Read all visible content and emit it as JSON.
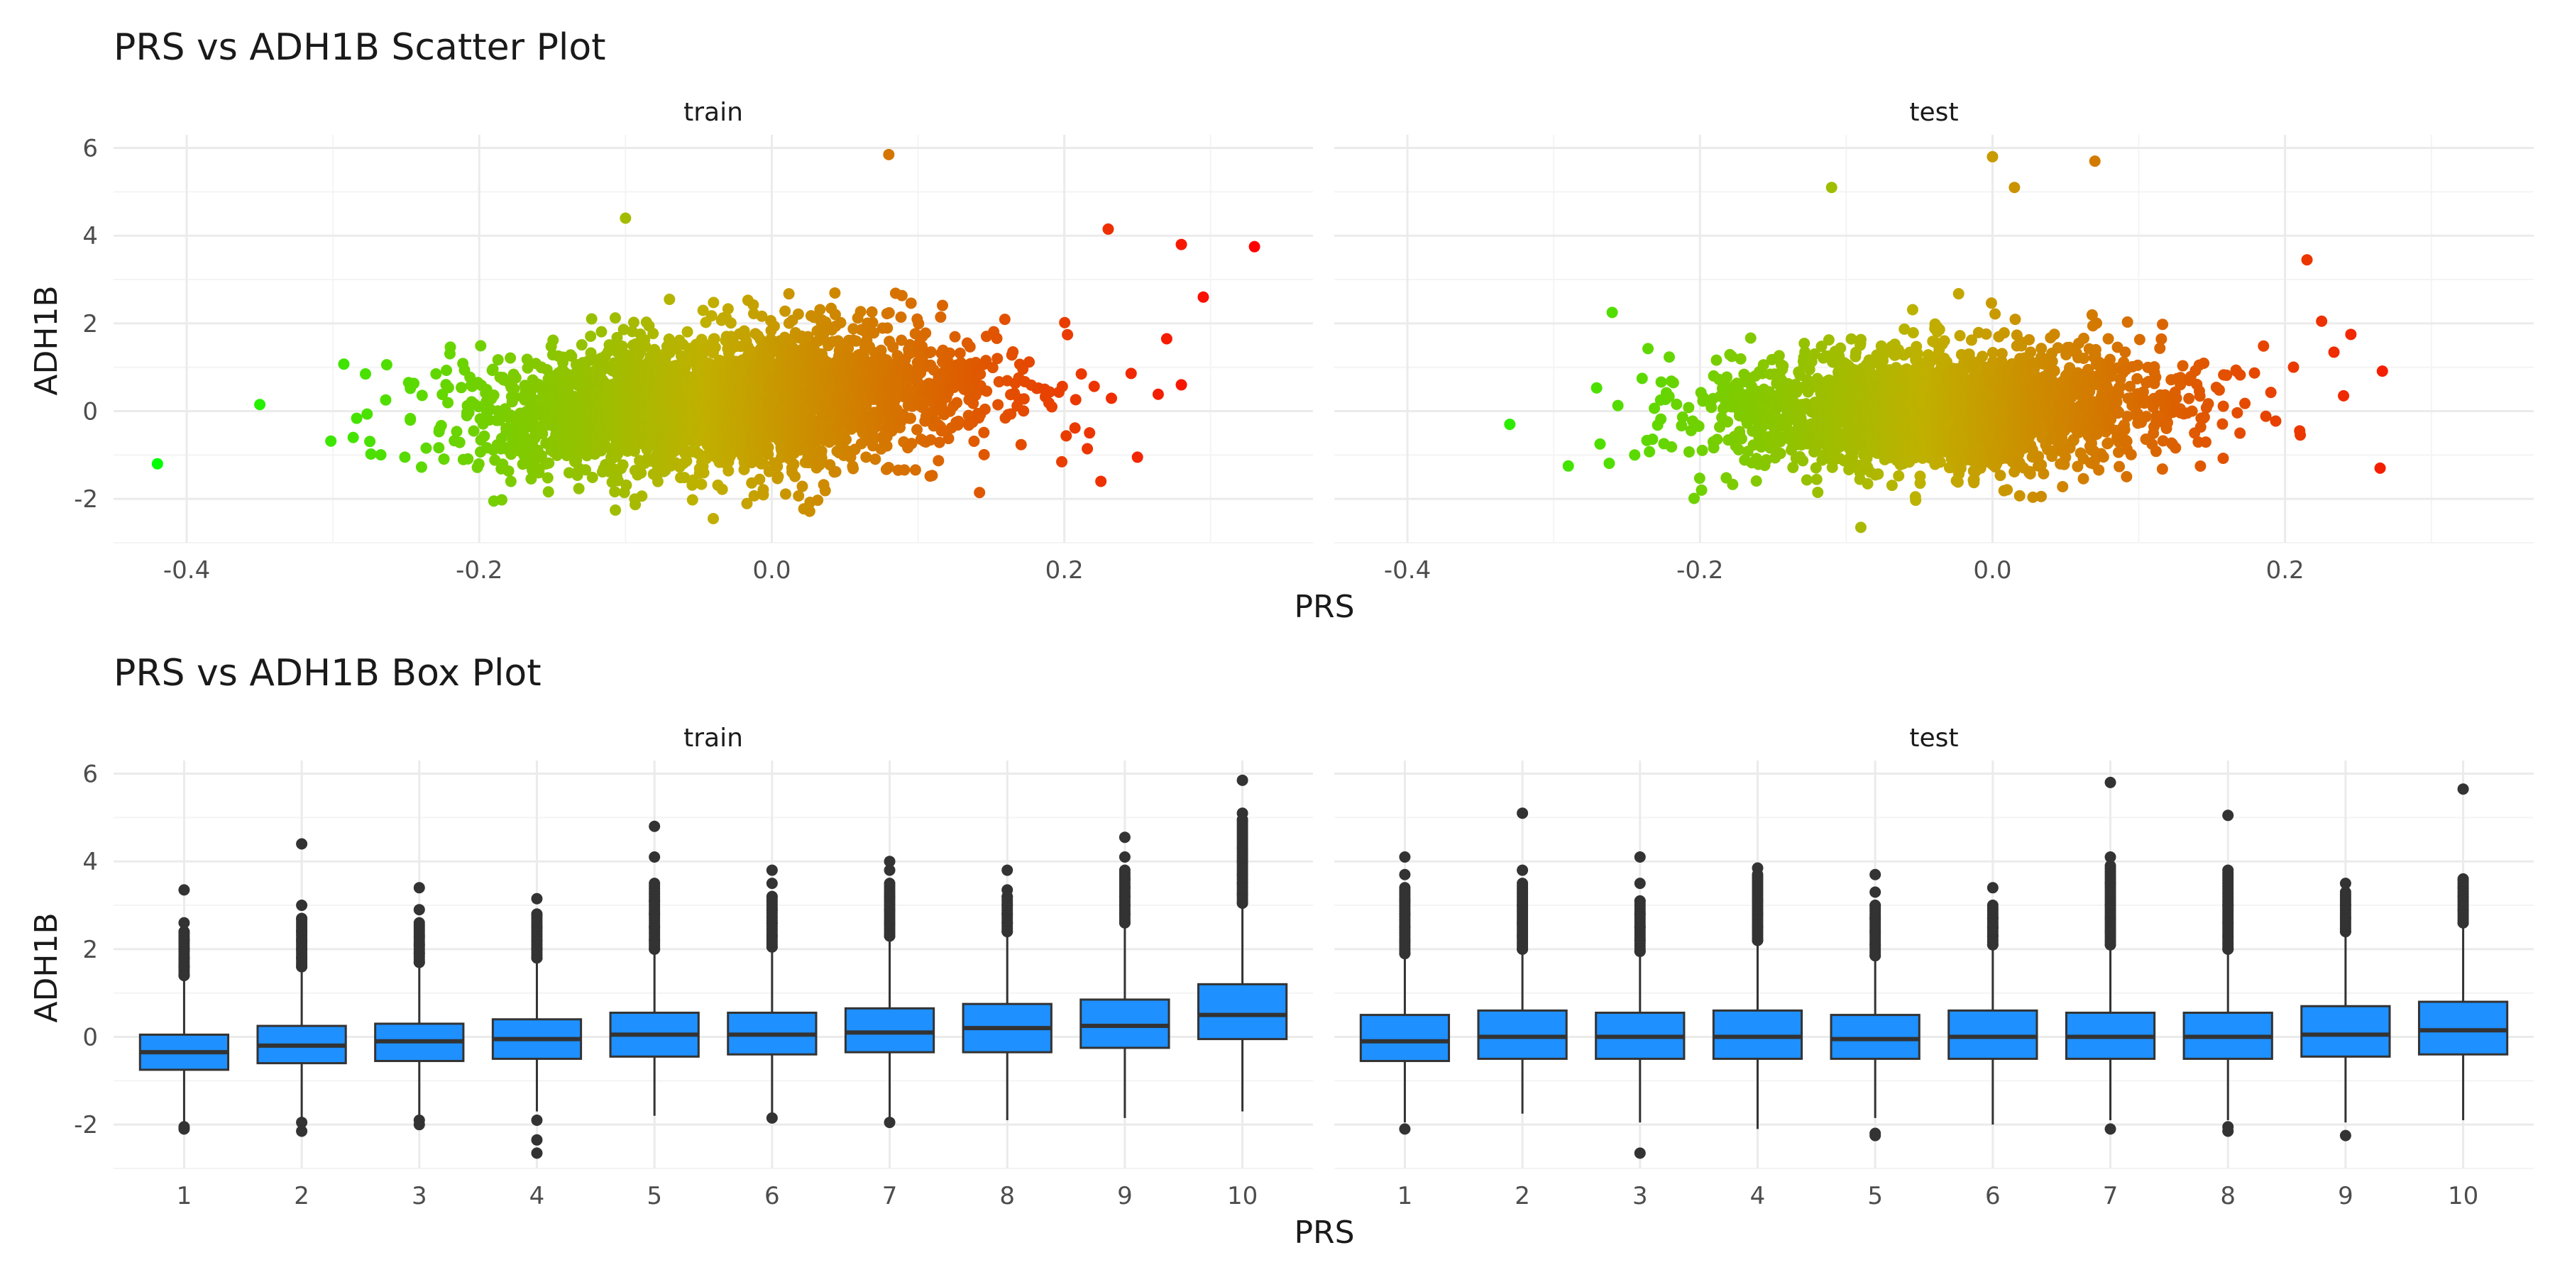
{
  "colors": {
    "background": "#ffffff",
    "grid": "#ebebeb",
    "box_fill": "#1e90ff",
    "box_outline": "#333333",
    "outlier": "#333333",
    "gradient_low": "#00ff00",
    "gradient_mid": "#c0b000",
    "gradient_high": "#ff0000"
  },
  "chart_data": [
    {
      "type": "scatter",
      "title": "PRS vs ADH1B Scatter Plot",
      "xlabel": "PRS",
      "ylabel": "ADH1B",
      "facets": [
        "train",
        "test"
      ],
      "xlim": [
        -0.45,
        0.37
      ],
      "ylim": [
        -3.0,
        6.3
      ],
      "x_ticks": [
        -0.4,
        -0.2,
        0.0,
        0.2
      ],
      "x_tick_labels": [
        "-0.4",
        "-0.2",
        "0.0",
        "0.2"
      ],
      "y_ticks": [
        -2,
        0,
        2,
        4,
        6
      ],
      "y_tick_labels": [
        "-2",
        "0",
        "2",
        "4",
        "6"
      ],
      "color_encoding": "PRS (gradient green to red)",
      "point_cloud": {
        "train": {
          "n": 3000,
          "x_mean": -0.03,
          "x_sd": 0.085,
          "slope": 3.2,
          "resid_sd": 0.78
        },
        "test": {
          "n": 2200,
          "x_mean": -0.035,
          "x_sd": 0.08,
          "slope": 0.6,
          "resid_sd": 0.72
        }
      },
      "series": [
        {
          "facet": "train",
          "extreme_points": [
            [
              -0.42,
              -1.2
            ],
            [
              -0.35,
              0.15
            ],
            [
              0.33,
              3.75
            ],
            [
              0.28,
              3.8
            ],
            [
              0.295,
              2.6
            ],
            [
              0.23,
              4.15
            ],
            [
              0.08,
              5.85
            ],
            [
              -0.1,
              4.4
            ],
            [
              0.28,
              0.6
            ],
            [
              0.25,
              -1.05
            ],
            [
              0.225,
              -1.6
            ],
            [
              -0.04,
              -2.45
            ],
            [
              -0.19,
              -2.05
            ],
            [
              0.27,
              1.65
            ]
          ]
        },
        {
          "facet": "test",
          "extreme_points": [
            [
              -0.33,
              -0.3
            ],
            [
              -0.29,
              -1.25
            ],
            [
              -0.26,
              2.25
            ],
            [
              0.0,
              5.8
            ],
            [
              0.07,
              5.7
            ],
            [
              -0.11,
              5.1
            ],
            [
              0.015,
              5.1
            ],
            [
              0.265,
              -1.3
            ],
            [
              0.24,
              0.35
            ],
            [
              0.215,
              3.45
            ],
            [
              0.245,
              1.75
            ],
            [
              -0.09,
              -2.65
            ],
            [
              0.225,
              2.05
            ],
            [
              0.21,
              -0.45
            ]
          ]
        }
      ]
    },
    {
      "type": "box",
      "title": "PRS vs ADH1B Box Plot",
      "xlabel": "PRS",
      "ylabel": "ADH1B",
      "facets": [
        "train",
        "test"
      ],
      "categories": [
        "1",
        "2",
        "3",
        "4",
        "5",
        "6",
        "7",
        "8",
        "9",
        "10"
      ],
      "ylim": [
        -3.0,
        6.3
      ],
      "y_ticks": [
        -2,
        0,
        2,
        4,
        6
      ],
      "y_tick_labels": [
        "-2",
        "0",
        "2",
        "4",
        "6"
      ],
      "series": [
        {
          "facet": "train",
          "boxes": [
            {
              "q1": -0.75,
              "median": -0.35,
              "q3": 0.05,
              "low": -1.95,
              "high": 1.3,
              "outliers": [
                -2.05,
                -2.1,
                1.4,
                1.6,
                1.8,
                2.0,
                2.2,
                2.4,
                2.6,
                3.35
              ]
            },
            {
              "q1": -0.6,
              "median": -0.2,
              "q3": 0.25,
              "low": -1.85,
              "high": 1.5,
              "outliers": [
                -1.95,
                -2.15,
                1.6,
                1.8,
                2.0,
                2.2,
                2.4,
                2.7,
                3.0,
                4.4
              ]
            },
            {
              "q1": -0.55,
              "median": -0.1,
              "q3": 0.3,
              "low": -1.8,
              "high": 1.6,
              "outliers": [
                -1.9,
                -2.0,
                1.7,
                1.9,
                2.1,
                2.3,
                2.6,
                2.9,
                3.4
              ]
            },
            {
              "q1": -0.5,
              "median": -0.05,
              "q3": 0.4,
              "low": -1.7,
              "high": 1.7,
              "outliers": [
                -1.9,
                -2.35,
                -2.65,
                1.8,
                2.0,
                2.2,
                2.5,
                2.8,
                3.15
              ]
            },
            {
              "q1": -0.45,
              "median": 0.05,
              "q3": 0.55,
              "low": -1.8,
              "high": 1.9,
              "outliers": [
                2.0,
                2.2,
                2.5,
                2.8,
                3.1,
                3.5,
                4.1,
                4.8
              ]
            },
            {
              "q1": -0.4,
              "median": 0.05,
              "q3": 0.55,
              "low": -1.8,
              "high": 1.95,
              "outliers": [
                -1.85,
                2.05,
                2.3,
                2.6,
                2.9,
                3.2,
                3.5,
                3.8
              ]
            },
            {
              "q1": -0.35,
              "median": 0.1,
              "q3": 0.65,
              "low": -1.85,
              "high": 2.2,
              "outliers": [
                -1.95,
                2.3,
                2.6,
                2.9,
                3.2,
                3.5,
                3.8,
                4.0
              ]
            },
            {
              "q1": -0.35,
              "median": 0.2,
              "q3": 0.75,
              "low": -1.9,
              "high": 2.3,
              "outliers": [
                2.4,
                2.6,
                2.8,
                3.0,
                3.2,
                3.35,
                3.8
              ]
            },
            {
              "q1": -0.25,
              "median": 0.25,
              "q3": 0.85,
              "low": -1.85,
              "high": 2.5,
              "outliers": [
                2.6,
                2.8,
                3.0,
                3.2,
                3.4,
                3.6,
                3.8,
                4.1,
                4.55
              ]
            },
            {
              "q1": -0.05,
              "median": 0.5,
              "q3": 1.2,
              "low": -1.7,
              "high": 2.95,
              "outliers": [
                3.05,
                3.25,
                3.5,
                3.7,
                4.0,
                4.3,
                4.95,
                5.1,
                5.85
              ]
            }
          ]
        },
        {
          "facet": "test",
          "boxes": [
            {
              "q1": -0.55,
              "median": -0.1,
              "q3": 0.5,
              "low": -1.95,
              "high": 1.8,
              "outliers": [
                -2.1,
                1.9,
                2.2,
                2.5,
                2.8,
                3.1,
                3.4,
                3.7,
                4.1
              ]
            },
            {
              "q1": -0.5,
              "median": 0.0,
              "q3": 0.6,
              "low": -1.75,
              "high": 1.9,
              "outliers": [
                2.0,
                2.3,
                2.6,
                3.0,
                3.5,
                3.8,
                5.1
              ]
            },
            {
              "q1": -0.5,
              "median": 0.0,
              "q3": 0.55,
              "low": -1.95,
              "high": 1.85,
              "outliers": [
                -2.65,
                1.95,
                2.2,
                2.5,
                2.8,
                3.1,
                3.5,
                4.1
              ]
            },
            {
              "q1": -0.5,
              "median": 0.0,
              "q3": 0.6,
              "low": -2.1,
              "high": 2.1,
              "outliers": [
                2.2,
                2.5,
                2.8,
                3.1,
                3.7,
                3.85
              ]
            },
            {
              "q1": -0.5,
              "median": -0.05,
              "q3": 0.5,
              "low": -1.85,
              "high": 1.75,
              "outliers": [
                -2.2,
                -2.25,
                1.85,
                2.1,
                2.4,
                2.7,
                3.0,
                3.3,
                3.7
              ]
            },
            {
              "q1": -0.5,
              "median": 0.0,
              "q3": 0.6,
              "low": -2.0,
              "high": 2.0,
              "outliers": [
                2.1,
                2.3,
                2.5,
                2.7,
                3.0,
                3.4
              ]
            },
            {
              "q1": -0.5,
              "median": 0.0,
              "q3": 0.55,
              "low": -1.9,
              "high": 2.0,
              "outliers": [
                -2.1,
                2.1,
                2.4,
                2.7,
                3.0,
                3.5,
                3.9,
                4.1,
                5.8
              ]
            },
            {
              "q1": -0.5,
              "median": 0.0,
              "q3": 0.55,
              "low": -1.9,
              "high": 1.9,
              "outliers": [
                -2.05,
                -2.15,
                2.0,
                2.3,
                2.6,
                3.0,
                3.8,
                5.05
              ]
            },
            {
              "q1": -0.45,
              "median": 0.05,
              "q3": 0.7,
              "low": -1.95,
              "high": 2.3,
              "outliers": [
                -2.25,
                2.4,
                2.7,
                3.0,
                3.3,
                3.5
              ]
            },
            {
              "q1": -0.4,
              "median": 0.15,
              "q3": 0.8,
              "low": -1.9,
              "high": 2.5,
              "outliers": [
                2.6,
                2.9,
                3.2,
                3.4,
                3.6,
                5.65
              ]
            }
          ]
        }
      ]
    }
  ]
}
